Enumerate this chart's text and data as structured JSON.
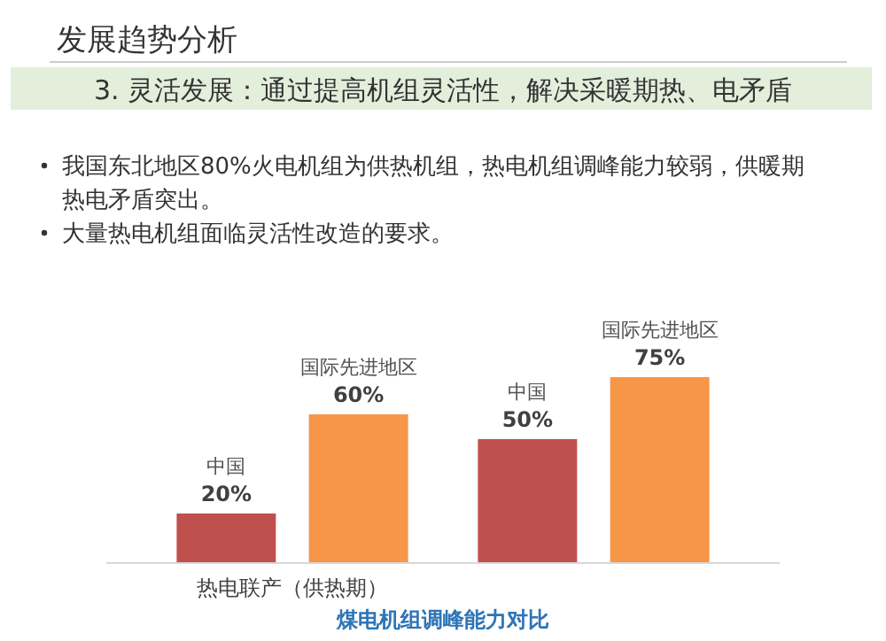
{
  "chart_data": {
    "type": "bar",
    "title": "发展趋势分析",
    "subtitle": "3. 灵活发展：通过提高机组灵活性，解决采暖期热、电矛盾",
    "annotations": [
      "我国东北地区80%火电机组为供热机组，热电机组调峰能力较弱，供暖期热电矛盾突出。",
      "大量热电机组面临灵活性改造的要求。"
    ],
    "categories": [
      "热电联产（供热期）",
      null
    ],
    "xlabel": "煤电机组调峰能力对比",
    "series": [
      {
        "name": "中国",
        "color": "#c0504d",
        "values": [
          20,
          50
        ],
        "value_labels": [
          "20%",
          "50%"
        ]
      },
      {
        "name": "国际先进地区",
        "color": "#f79646",
        "values": [
          60,
          75
        ],
        "value_labels": [
          "60%",
          "75%"
        ]
      }
    ],
    "relative": false
  }
}
